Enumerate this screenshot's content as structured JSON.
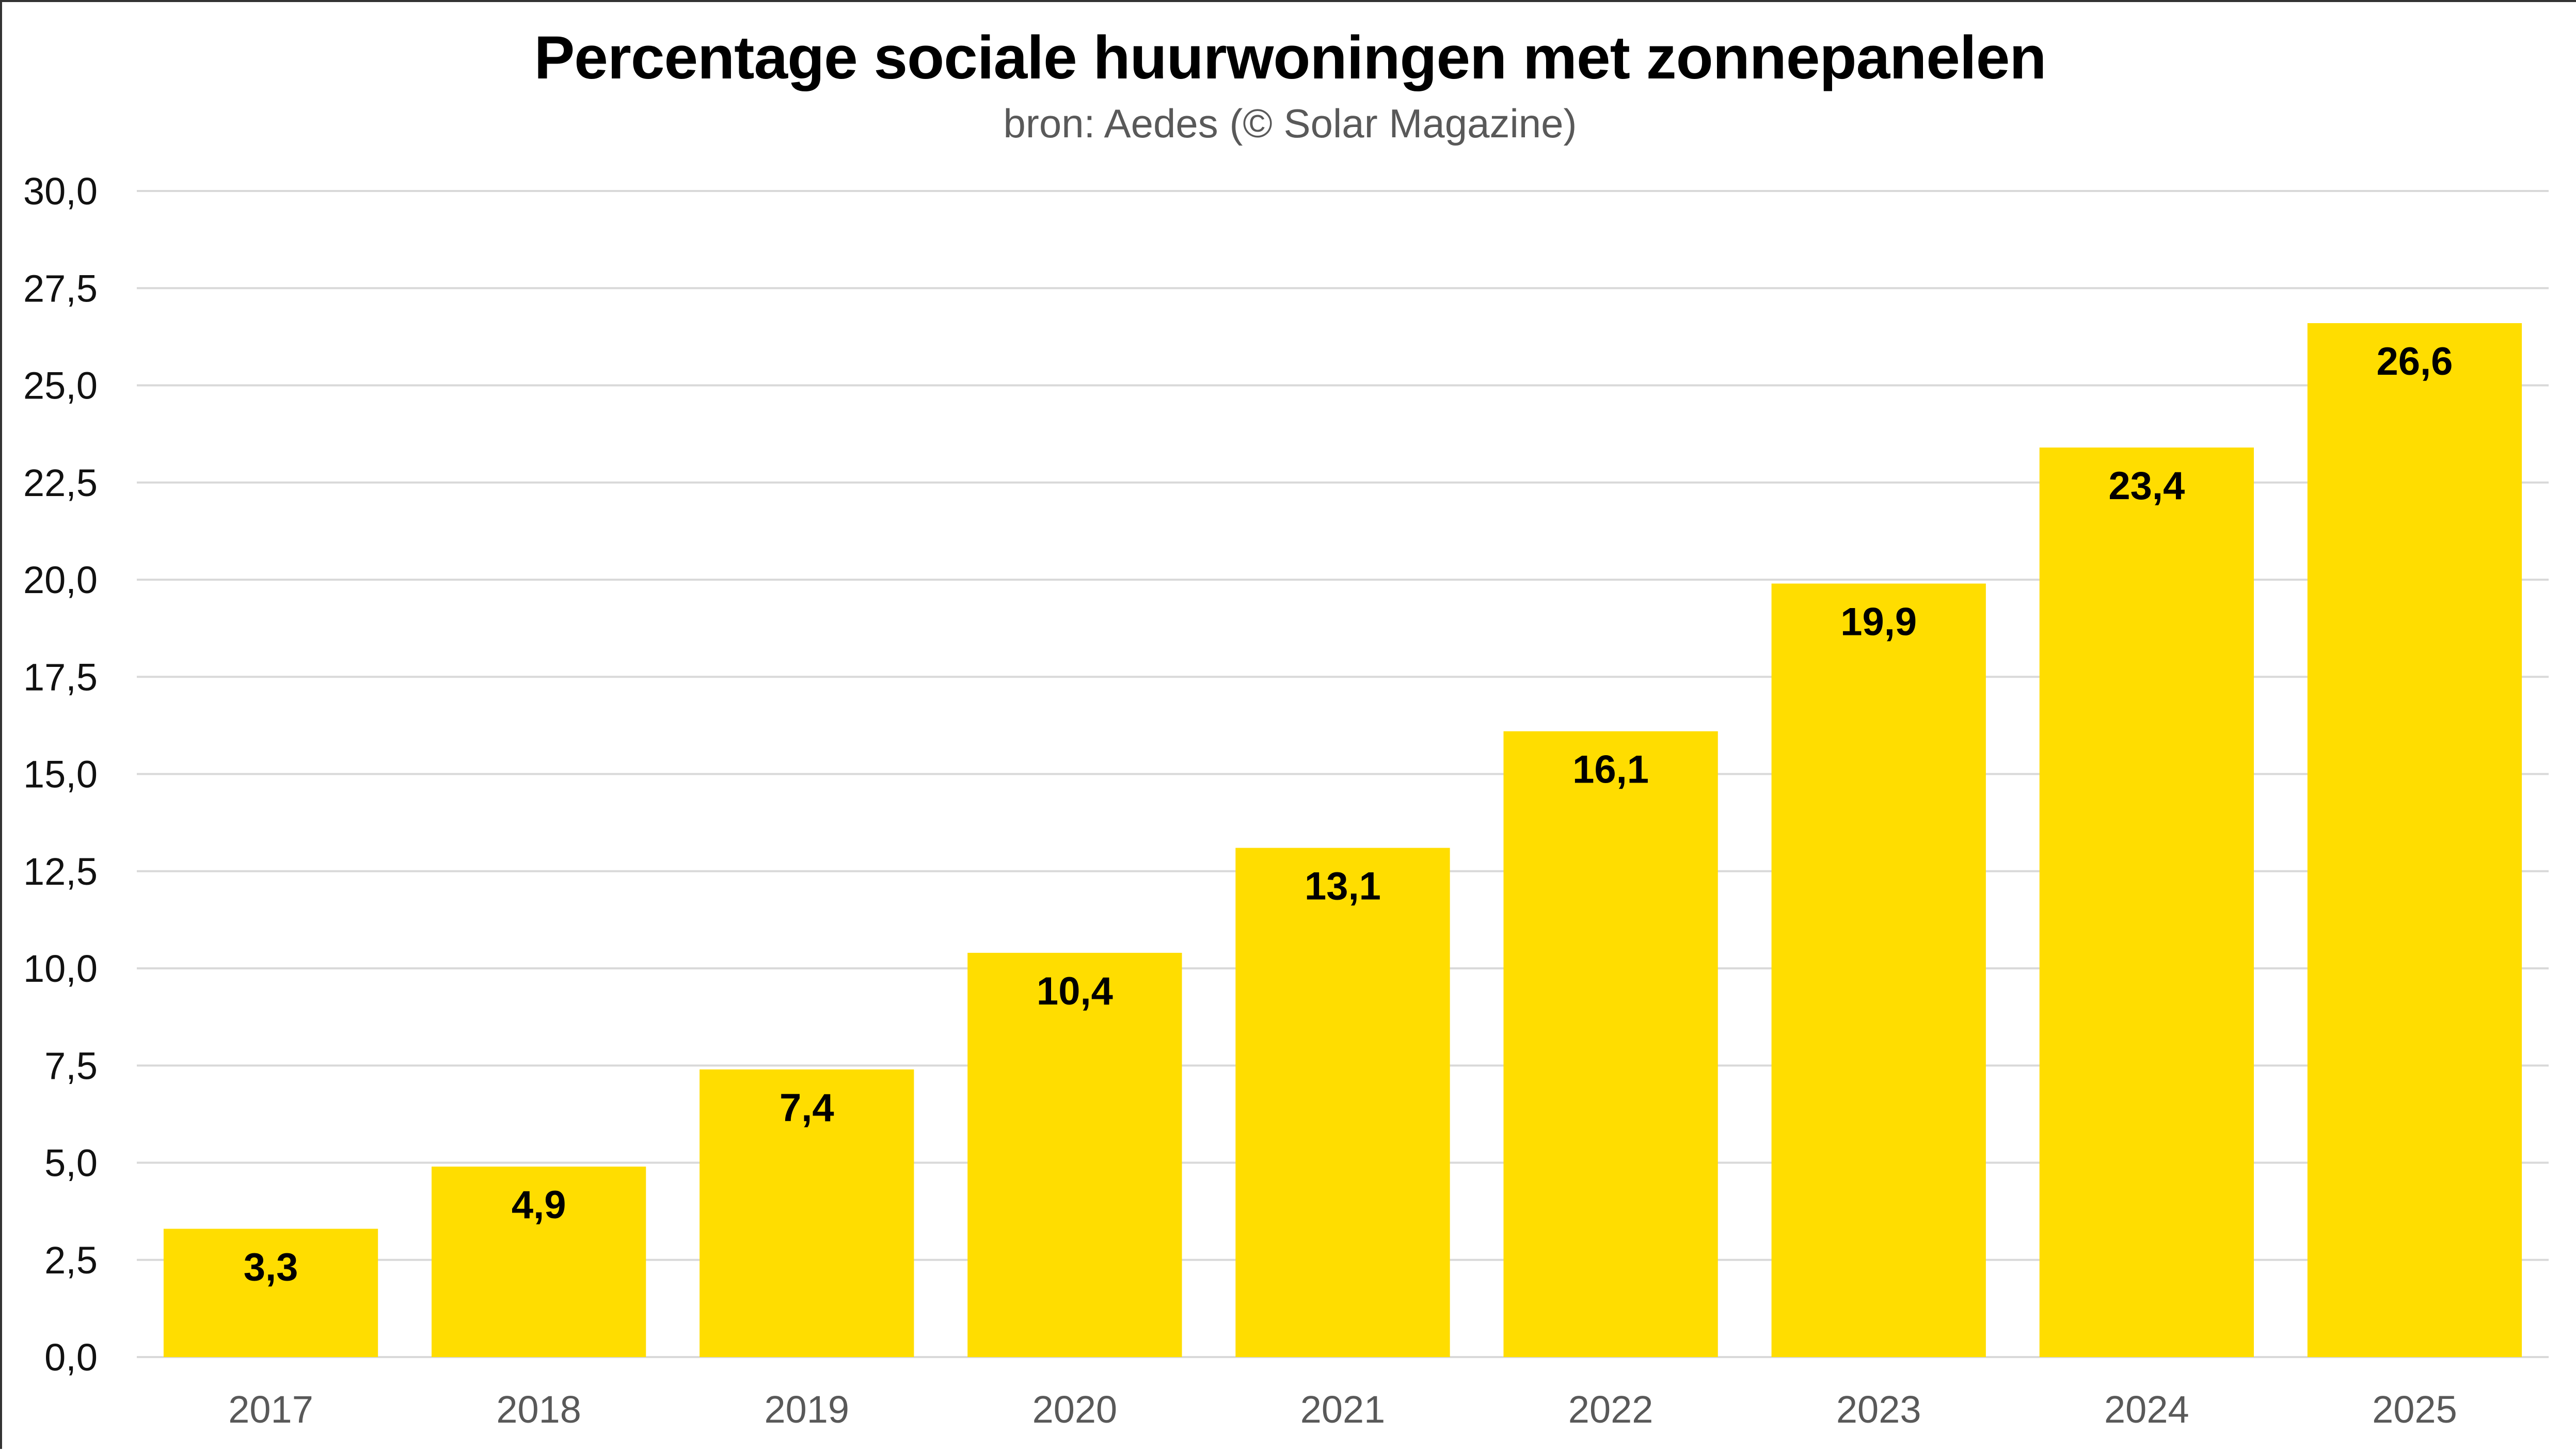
{
  "chart_data": {
    "type": "bar",
    "title": "Percentage sociale huurwoningen met zonnepanelen",
    "subtitle": "bron: Aedes (© Solar Magazine)",
    "xlabel": "",
    "ylabel": "",
    "categories": [
      "2017",
      "2018",
      "2019",
      "2020",
      "2021",
      "2022",
      "2023",
      "2024",
      "2025"
    ],
    "values": [
      3.3,
      4.9,
      7.4,
      10.4,
      13.1,
      16.1,
      19.9,
      23.4,
      26.6
    ],
    "data_labels": [
      "3,3",
      "4,9",
      "7,4",
      "10,4",
      "13,1",
      "16,1",
      "19,9",
      "23,4",
      "26,6"
    ],
    "ylim": [
      0,
      30
    ],
    "yticks": [
      0,
      2.5,
      5,
      7.5,
      10,
      12.5,
      15,
      17.5,
      20,
      22.5,
      25,
      27.5,
      30
    ],
    "ytick_labels": [
      "0,0",
      "2,5",
      "5,0",
      "7,5",
      "10,0",
      "12,5",
      "15,0",
      "17,5",
      "20,0",
      "22,5",
      "25,0",
      "27,5",
      "30,0"
    ],
    "grid": true,
    "legend": "none",
    "colors": {
      "bar": "#FFDD00",
      "grid": "#D9D9D9",
      "tick_y": "#111111",
      "tick_x": "#595959"
    }
  }
}
